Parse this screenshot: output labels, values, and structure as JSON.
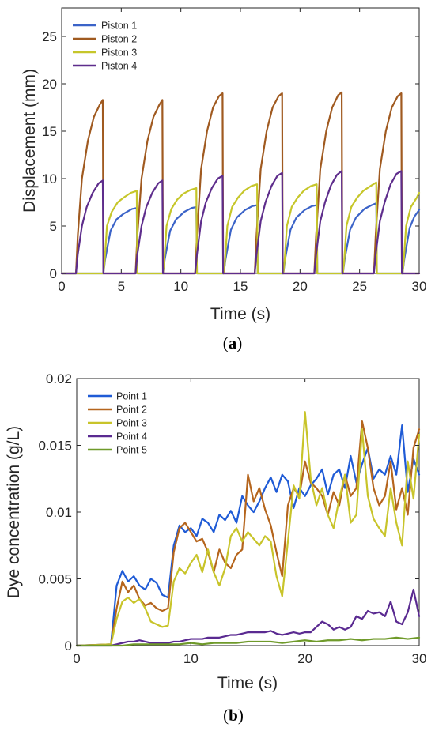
{
  "chart_data": [
    {
      "type": "line",
      "panel_label": "(a)",
      "panel_letter": "a",
      "xlabel": "Time (s)",
      "ylabel": "Displacement (mm)",
      "xlim": [
        0,
        30
      ],
      "ylim": [
        0,
        28
      ],
      "xticks": [
        0,
        5,
        10,
        15,
        20,
        25,
        30
      ],
      "yticks": [
        0,
        5,
        10,
        15,
        20,
        25
      ],
      "grid": false,
      "legend_position": "top-left",
      "series": [
        {
          "name": "Piston 1",
          "color": "#3b63c8",
          "x": [
            0,
            3.5,
            3.65,
            4.1,
            4.6,
            5.2,
            5.9,
            6.3,
            6.35,
            8.5,
            8.65,
            9.1,
            9.6,
            10.3,
            10.9,
            11.3,
            11.35,
            13.6,
            13.75,
            14.2,
            14.7,
            15.4,
            16.0,
            16.4,
            16.45,
            18.6,
            18.75,
            19.2,
            19.7,
            20.4,
            21.0,
            21.4,
            21.45,
            23.6,
            23.75,
            24.2,
            24.7,
            25.4,
            26.0,
            26.4,
            26.45,
            28.6,
            28.75,
            29.2,
            29.6,
            30
          ],
          "y": [
            0,
            0,
            1.5,
            4.5,
            5.7,
            6.3,
            6.8,
            6.9,
            0,
            0,
            1.5,
            4.5,
            5.7,
            6.5,
            6.9,
            7.0,
            0,
            0,
            1.5,
            4.6,
            5.9,
            6.7,
            7.1,
            7.2,
            0,
            0,
            1.5,
            4.6,
            5.9,
            6.7,
            7.1,
            7.2,
            0,
            0,
            1.5,
            4.6,
            5.9,
            6.8,
            7.2,
            7.4,
            0,
            0,
            1.5,
            4.8,
            6.0,
            6.7
          ]
        },
        {
          "name": "Piston 2",
          "color": "#a05a20",
          "x": [
            0,
            1.2,
            1.35,
            1.7,
            2.2,
            2.7,
            3.2,
            3.45,
            3.5,
            6.2,
            6.35,
            6.7,
            7.2,
            7.7,
            8.2,
            8.45,
            8.5,
            11.2,
            11.35,
            11.7,
            12.2,
            12.7,
            13.2,
            13.5,
            13.55,
            16.2,
            16.35,
            16.7,
            17.2,
            17.7,
            18.2,
            18.5,
            18.55,
            21.2,
            21.35,
            21.7,
            22.2,
            22.7,
            23.2,
            23.5,
            23.55,
            26.2,
            26.35,
            26.7,
            27.2,
            27.7,
            28.2,
            28.5,
            28.55,
            30
          ],
          "y": [
            0,
            0,
            4,
            10,
            14,
            16.5,
            17.8,
            18.3,
            0,
            0,
            4,
            10,
            14,
            16.5,
            17.8,
            18.3,
            0,
            0,
            4,
            11,
            15,
            17.5,
            18.7,
            19.0,
            0,
            0,
            4,
            11,
            15,
            17.5,
            18.7,
            19.0,
            0,
            0,
            4,
            11,
            15,
            17.5,
            18.8,
            19.1,
            0,
            0,
            4,
            11,
            15,
            17.5,
            18.7,
            19.0,
            0,
            0
          ]
        },
        {
          "name": "Piston 3",
          "color": "#c6c62a",
          "x": [
            0,
            3.5,
            3.6,
            3.8,
            4.2,
            4.7,
            5.2,
            5.8,
            6.3,
            6.35,
            8.5,
            8.6,
            8.8,
            9.2,
            9.7,
            10.2,
            10.8,
            11.3,
            11.35,
            13.6,
            13.7,
            13.9,
            14.3,
            14.8,
            15.3,
            15.9,
            16.4,
            16.45,
            18.6,
            18.7,
            18.9,
            19.3,
            19.8,
            20.3,
            20.9,
            21.4,
            21.45,
            23.6,
            23.7,
            23.9,
            24.3,
            24.8,
            25.3,
            25.9,
            26.4,
            26.45,
            28.6,
            28.7,
            28.9,
            29.3,
            29.8,
            30
          ],
          "y": [
            0,
            0,
            1.2,
            5,
            6.5,
            7.5,
            8.0,
            8.5,
            8.7,
            0,
            0,
            1.2,
            5,
            6.8,
            7.8,
            8.4,
            8.8,
            9.0,
            0,
            0,
            1.2,
            5,
            7.0,
            8.0,
            8.7,
            9.2,
            9.4,
            0,
            0,
            1.2,
            5,
            7.0,
            8.0,
            8.7,
            9.2,
            9.4,
            0,
            0,
            1.2,
            5,
            7.0,
            8.0,
            8.7,
            9.2,
            9.6,
            0,
            0,
            1.2,
            5,
            7.0,
            8.0,
            8.5
          ]
        },
        {
          "name": "Piston 4",
          "color": "#5e2d8c",
          "x": [
            0,
            1.2,
            1.35,
            1.7,
            2.1,
            2.6,
            3.1,
            3.45,
            3.5,
            6.2,
            6.35,
            6.7,
            7.1,
            7.6,
            8.1,
            8.45,
            8.5,
            11.2,
            11.35,
            11.7,
            12.1,
            12.6,
            13.1,
            13.5,
            13.55,
            16.2,
            16.35,
            16.7,
            17.1,
            17.6,
            18.1,
            18.5,
            18.55,
            21.2,
            21.35,
            21.7,
            22.1,
            22.6,
            23.1,
            23.5,
            23.55,
            26.2,
            26.35,
            26.7,
            27.1,
            27.6,
            28.1,
            28.5,
            28.55,
            30
          ],
          "y": [
            0,
            0,
            2,
            5,
            7,
            8.5,
            9.5,
            9.8,
            0,
            0,
            2,
            5,
            7,
            8.5,
            9.5,
            9.8,
            0,
            0,
            2,
            5.5,
            7.5,
            9,
            10,
            10.3,
            0,
            0,
            2,
            5.5,
            7.5,
            9.2,
            10.3,
            10.6,
            0,
            0,
            2,
            5.5,
            7.5,
            9.3,
            10.4,
            10.8,
            0,
            0,
            2,
            5.5,
            7.5,
            9.4,
            10.5,
            10.8,
            0,
            0
          ]
        }
      ]
    },
    {
      "type": "line",
      "panel_label": "(b)",
      "panel_letter": "b",
      "xlabel": "Time (s)",
      "ylabel": "Dye concentration (g/L)",
      "xlim": [
        0,
        30
      ],
      "ylim": [
        0,
        0.02
      ],
      "xticks": [
        0,
        10,
        20,
        30
      ],
      "yticks": [
        0,
        0.005,
        0.01,
        0.015,
        0.02
      ],
      "ytick_labels": [
        "0",
        "0.005",
        "0.01",
        "0.015",
        "0.02"
      ],
      "grid": false,
      "legend_position": "top-left",
      "series": [
        {
          "name": "Point 1",
          "color": "#1f5bd6",
          "x": [
            0,
            3,
            3.5,
            4,
            4.5,
            5,
            5.5,
            6,
            6.5,
            7,
            7.5,
            8,
            8.5,
            9,
            9.5,
            10,
            10.5,
            11,
            11.5,
            12,
            12.5,
            13,
            13.5,
            14,
            14.5,
            15,
            15.5,
            16,
            16.5,
            17,
            17.5,
            18,
            18.5,
            19,
            19.5,
            20,
            20.5,
            21,
            21.5,
            22,
            22.5,
            23,
            23.5,
            24,
            24.5,
            25,
            25.5,
            26,
            26.5,
            27,
            27.5,
            28,
            28.5,
            29,
            29.5,
            30
          ],
          "y": [
            0,
            0.0001,
            0.0045,
            0.0056,
            0.0048,
            0.0052,
            0.0045,
            0.0042,
            0.005,
            0.0047,
            0.0038,
            0.0036,
            0.0075,
            0.009,
            0.0085,
            0.0088,
            0.0082,
            0.0095,
            0.0092,
            0.0085,
            0.0098,
            0.0094,
            0.0101,
            0.0092,
            0.0112,
            0.0105,
            0.01,
            0.0108,
            0.0118,
            0.0126,
            0.0115,
            0.0128,
            0.0123,
            0.0103,
            0.0118,
            0.0112,
            0.012,
            0.0125,
            0.0132,
            0.0113,
            0.0128,
            0.0132,
            0.0118,
            0.0142,
            0.0122,
            0.0136,
            0.0148,
            0.0125,
            0.0132,
            0.0128,
            0.0142,
            0.0128,
            0.0165,
            0.0115,
            0.014,
            0.0128
          ]
        },
        {
          "name": "Point 2",
          "color": "#b5651d",
          "x": [
            0,
            3,
            3.5,
            4,
            4.5,
            5,
            5.5,
            6,
            6.5,
            7,
            7.5,
            8,
            8.5,
            9,
            9.5,
            10,
            10.5,
            11,
            11.5,
            12,
            12.5,
            13,
            13.5,
            14,
            14.5,
            15,
            15.5,
            16,
            16.5,
            17,
            17.5,
            18,
            18.5,
            19,
            19.5,
            20,
            20.5,
            21,
            21.5,
            22,
            22.5,
            23,
            23.5,
            24,
            24.5,
            25,
            25.5,
            26,
            26.5,
            27,
            27.5,
            28,
            28.5,
            29,
            29.5,
            30
          ],
          "y": [
            0,
            0.0001,
            0.0028,
            0.0048,
            0.004,
            0.0045,
            0.0035,
            0.003,
            0.0032,
            0.0028,
            0.0026,
            0.0028,
            0.007,
            0.0088,
            0.0092,
            0.0085,
            0.0078,
            0.008,
            0.007,
            0.0055,
            0.0072,
            0.0062,
            0.0058,
            0.0068,
            0.0072,
            0.0128,
            0.0108,
            0.0118,
            0.0102,
            0.009,
            0.007,
            0.0052,
            0.0105,
            0.0118,
            0.0112,
            0.0138,
            0.0122,
            0.0118,
            0.0112,
            0.0098,
            0.0115,
            0.0105,
            0.0128,
            0.0112,
            0.0118,
            0.0168,
            0.0148,
            0.0118,
            0.0105,
            0.0112,
            0.0138,
            0.0102,
            0.0118,
            0.0098,
            0.0148,
            0.0162
          ]
        },
        {
          "name": "Point 3",
          "color": "#c8c42a",
          "x": [
            0,
            3,
            3.5,
            4,
            4.5,
            5,
            5.5,
            6,
            6.5,
            7,
            7.5,
            8,
            8.5,
            9,
            9.5,
            10,
            10.5,
            11,
            11.5,
            12,
            12.5,
            13,
            13.5,
            14,
            14.5,
            15,
            15.5,
            16,
            16.5,
            17,
            17.5,
            18,
            18.5,
            19,
            19.5,
            20,
            20.5,
            21,
            21.5,
            22,
            22.5,
            23,
            23.5,
            24,
            24.5,
            25,
            25.5,
            26,
            26.5,
            27,
            27.5,
            28,
            28.5,
            29,
            29.5,
            30
          ],
          "y": [
            0,
            0.0001,
            0.002,
            0.0033,
            0.0036,
            0.0032,
            0.0035,
            0.0028,
            0.0018,
            0.0016,
            0.0014,
            0.0015,
            0.0048,
            0.0058,
            0.0054,
            0.0062,
            0.0068,
            0.0055,
            0.0072,
            0.0055,
            0.0045,
            0.0058,
            0.0082,
            0.0088,
            0.0078,
            0.0085,
            0.008,
            0.0075,
            0.0082,
            0.0078,
            0.0052,
            0.0037,
            0.0078,
            0.012,
            0.011,
            0.0175,
            0.0125,
            0.0105,
            0.0118,
            0.0098,
            0.0088,
            0.011,
            0.0128,
            0.0092,
            0.0098,
            0.0162,
            0.0112,
            0.0095,
            0.0088,
            0.0082,
            0.0118,
            0.0092,
            0.0075,
            0.0138,
            0.011,
            0.0158
          ]
        },
        {
          "name": "Point 4",
          "color": "#5a2a91",
          "x": [
            0,
            3,
            3.5,
            4,
            4.5,
            5,
            5.5,
            6,
            6.5,
            7,
            7.5,
            8,
            8.5,
            9,
            9.5,
            10,
            10.5,
            11,
            11.5,
            12,
            12.5,
            13,
            13.5,
            14,
            14.5,
            15,
            15.5,
            16,
            16.5,
            17,
            17.5,
            18,
            18.5,
            19,
            19.5,
            20,
            20.5,
            21,
            21.5,
            22,
            22.5,
            23,
            23.5,
            24,
            24.5,
            25,
            25.5,
            26,
            26.5,
            27,
            27.5,
            28,
            28.5,
            29,
            29.5,
            30
          ],
          "y": [
            0,
            0,
            0.0001,
            0.0002,
            0.0003,
            0.0003,
            0.0004,
            0.0003,
            0.0002,
            0.0002,
            0.0002,
            0.0002,
            0.0003,
            0.0003,
            0.0004,
            0.0005,
            0.0005,
            0.0005,
            0.0006,
            0.0006,
            0.0006,
            0.0007,
            0.0008,
            0.0008,
            0.0009,
            0.001,
            0.001,
            0.001,
            0.001,
            0.0011,
            0.0009,
            0.0008,
            0.0009,
            0.001,
            0.0009,
            0.001,
            0.001,
            0.0014,
            0.0018,
            0.0016,
            0.0012,
            0.0014,
            0.0012,
            0.0014,
            0.0022,
            0.002,
            0.0026,
            0.0024,
            0.0025,
            0.0022,
            0.0033,
            0.0018,
            0.0016,
            0.0025,
            0.0042,
            0.0022
          ]
        },
        {
          "name": "Point 5",
          "color": "#6f9a2a",
          "x": [
            0,
            3,
            4,
            5,
            6,
            7,
            8,
            9,
            10,
            11,
            12,
            13,
            14,
            15,
            16,
            17,
            18,
            19,
            20,
            21,
            22,
            23,
            24,
            25,
            26,
            27,
            28,
            29,
            30
          ],
          "y": [
            0,
            0,
            0,
            0.0001,
            0.0001,
            0.0001,
            0.0001,
            0.0001,
            0.0002,
            0.0001,
            0.0002,
            0.0002,
            0.0002,
            0.0003,
            0.0003,
            0.0003,
            0.0002,
            0.0003,
            0.0004,
            0.0003,
            0.0004,
            0.0004,
            0.0005,
            0.0004,
            0.0005,
            0.0005,
            0.0006,
            0.0005,
            0.0006
          ]
        }
      ]
    }
  ]
}
